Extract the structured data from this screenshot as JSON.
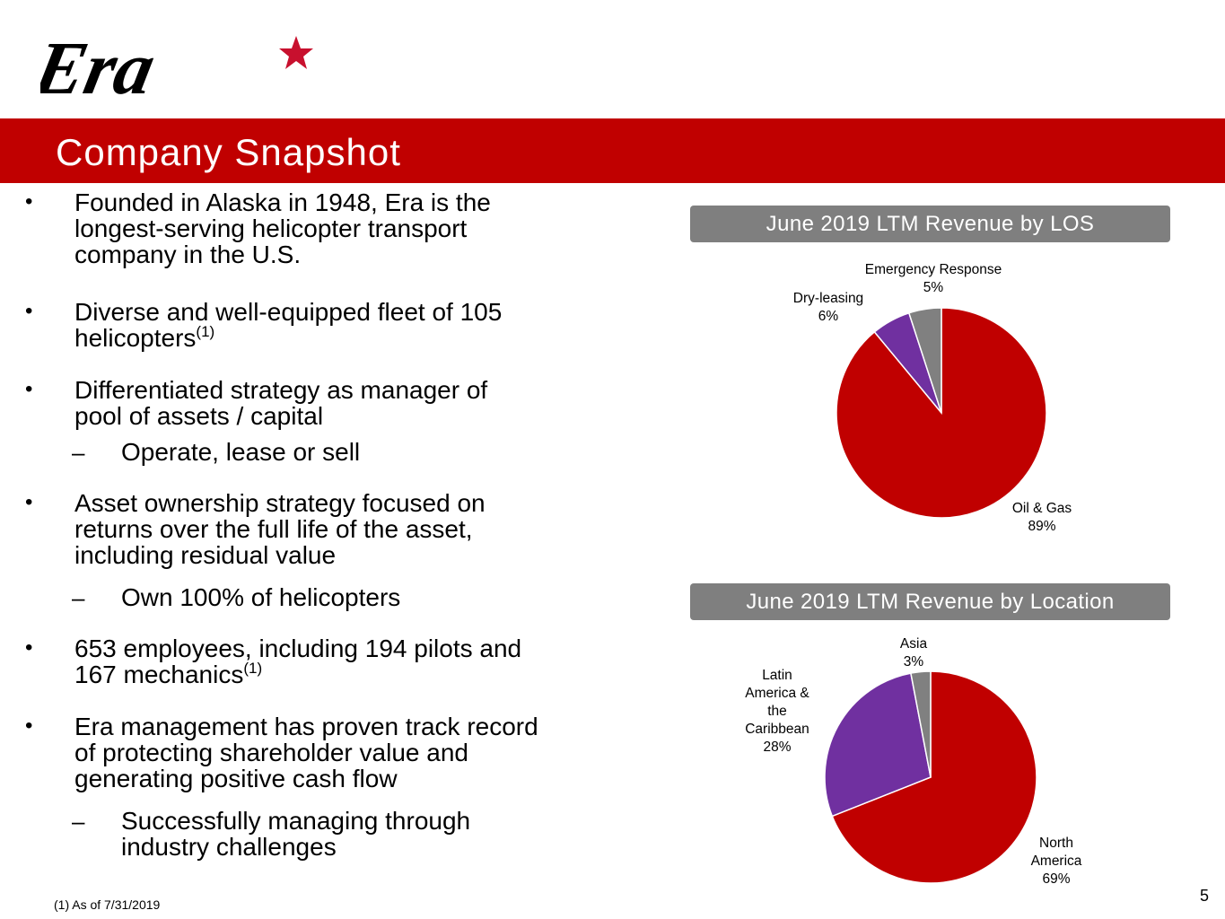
{
  "logo": {
    "text": "Era",
    "star_color": "#c8102e"
  },
  "header": {
    "title": "Company Snapshot",
    "bar_color": "#c00000"
  },
  "bullets": {
    "b1": {
      "l1": "Founded in Alaska in 1948, Era is the",
      "l2": "longest-serving helicopter transport",
      "l3": "company in the U.S."
    },
    "b2": {
      "l1": "Diverse and well-equipped fleet of 105",
      "l2": "helicopters",
      "sup": "(1)"
    },
    "b3": {
      "l1": "Differentiated strategy as manager of",
      "l2": "pool of assets / capital",
      "sub1": "Operate, lease or sell"
    },
    "b4": {
      "l1": "Asset ownership strategy focused on",
      "l2": "returns over the full life of the asset,",
      "l3": "including residual value",
      "sub1": "Own 100% of helicopters"
    },
    "b5": {
      "l1": "653 employees, including 194 pilots and",
      "l2": "167 mechanics",
      "sup": "(1)"
    },
    "b6": {
      "l1": "Era management has proven track record",
      "l2": "of protecting shareholder value and",
      "l3": "generating positive cash flow",
      "sub1a": "Successfully managing through",
      "sub1b": "industry challenges"
    },
    "bullet_char": "•",
    "dash_char": "–"
  },
  "chart_data": [
    {
      "type": "pie",
      "title": "June 2019 LTM Revenue by LOS",
      "slices": [
        {
          "name": "Oil & Gas",
          "value": 89,
          "label": "89%",
          "color": "#c00000"
        },
        {
          "name": "Dry-leasing",
          "value": 6,
          "label": "6%",
          "color": "#7030a0"
        },
        {
          "name": "Emergency Response",
          "value": 5,
          "label": "5%",
          "color": "#808080"
        }
      ]
    },
    {
      "type": "pie",
      "title": "June 2019 LTM Revenue by Location",
      "slices": [
        {
          "name": "North America",
          "value": 69,
          "label": "69%",
          "color": "#c00000"
        },
        {
          "name": "Latin America & the Caribbean",
          "value": 28,
          "label": "28%",
          "color": "#7030a0"
        },
        {
          "name": "Asia",
          "value": 3,
          "label": "3%",
          "color": "#808080"
        }
      ]
    }
  ],
  "chart_labels": {
    "los": {
      "emergency": {
        "l1": "Emergency Response",
        "l2": "5%"
      },
      "dry": {
        "l1": "Dry-leasing",
        "l2": "6%"
      },
      "oil": {
        "l1": "Oil & Gas",
        "l2": "89%"
      }
    },
    "loc": {
      "asia": {
        "l1": "Asia",
        "l2": "3%"
      },
      "latin": {
        "l1": "Latin",
        "l2": "America &",
        "l3": "the",
        "l4": "Caribbean",
        "l5": "28%"
      },
      "north": {
        "l1": "North",
        "l2": "America",
        "l3": "69%"
      }
    }
  },
  "footnote": "(1)   As of 7/31/2019",
  "page_number": "5"
}
